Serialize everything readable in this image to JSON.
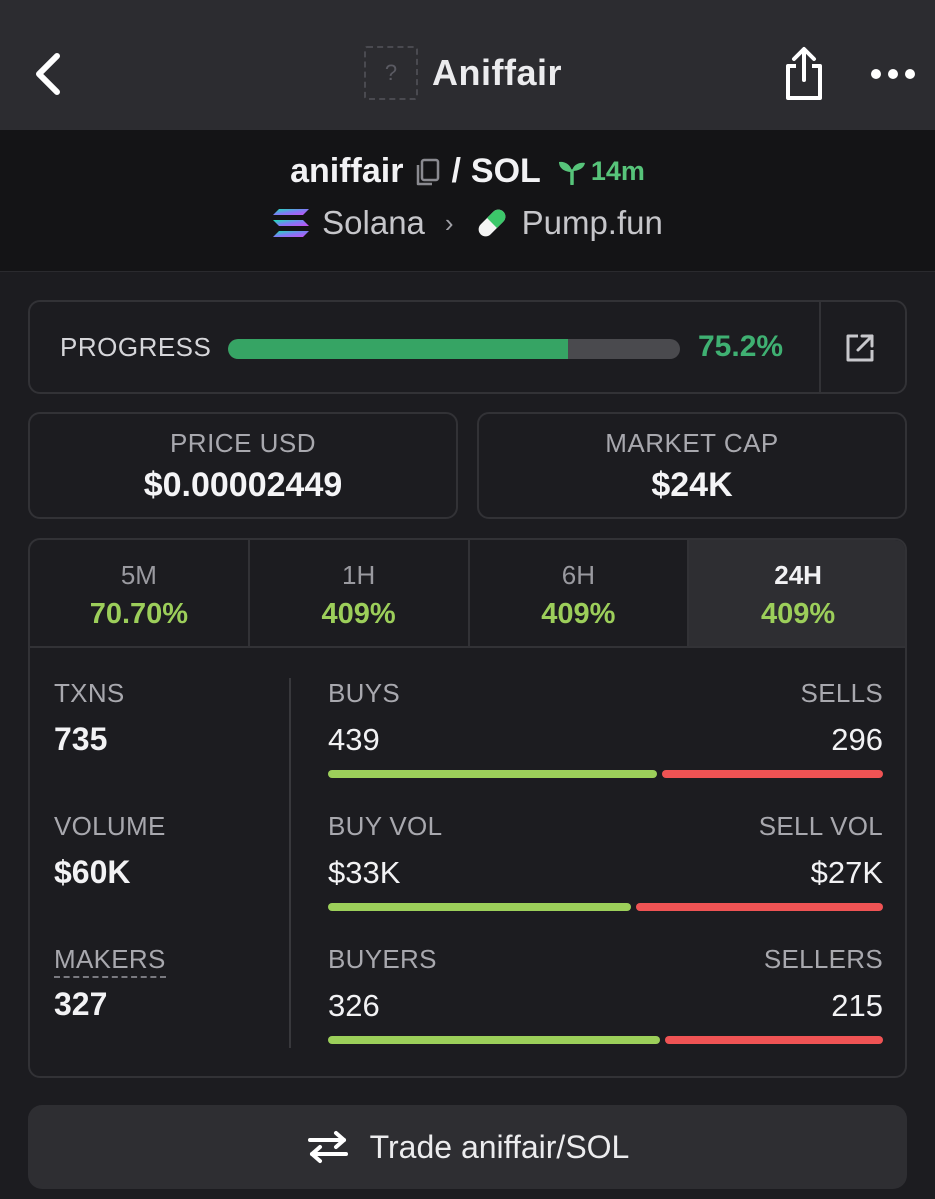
{
  "header": {
    "title": "Aniffair",
    "token_placeholder": "?"
  },
  "pair": {
    "base": "aniffair",
    "separator": "/",
    "quote": "SOL",
    "age": "14m",
    "chain": "Solana",
    "dex": "Pump.fun"
  },
  "progress": {
    "label": "PROGRESS",
    "value_text": "75.2%",
    "fraction": 0.752
  },
  "price": {
    "label": "PRICE USD",
    "value": "$0.00002449"
  },
  "market_cap": {
    "label": "MARKET CAP",
    "value": "$24K"
  },
  "tabs": [
    {
      "label": "5M",
      "change": "70.70%",
      "active": false
    },
    {
      "label": "1H",
      "change": "409%",
      "active": false
    },
    {
      "label": "6H",
      "change": "409%",
      "active": false
    },
    {
      "label": "24H",
      "change": "409%",
      "active": true
    }
  ],
  "metrics": {
    "txns": {
      "label": "TXNS",
      "value": "735"
    },
    "volume": {
      "label": "VOLUME",
      "value": "$60K"
    },
    "makers": {
      "label": "MAKERS",
      "value": "327"
    }
  },
  "ratios": {
    "buys": {
      "left_label": "BUYS",
      "right_label": "SELLS",
      "left_value": "439",
      "right_value": "296",
      "buy_fraction": 0.597
    },
    "volume": {
      "left_label": "BUY VOL",
      "right_label": "SELL VOL",
      "left_value": "$33K",
      "right_value": "$27K",
      "buy_fraction": 0.55
    },
    "buyers": {
      "left_label": "BUYERS",
      "right_label": "SELLERS",
      "left_value": "326",
      "right_value": "215",
      "buy_fraction": 0.603
    }
  },
  "trade_button": {
    "label": "Trade aniffair/SOL"
  },
  "colors": {
    "positive": "#9cce5a",
    "progress": "#36a464",
    "sell": "#ef5354",
    "age": "#57c47a"
  },
  "icons": {
    "back": "chevron-left-icon",
    "share": "share-icon",
    "more": "more-horizontal-icon",
    "copy": "copy-icon",
    "age": "sprout-icon",
    "chain": "solana-logo-icon",
    "dex": "pill-icon",
    "external": "external-link-icon",
    "trade": "swap-arrows-icon"
  }
}
